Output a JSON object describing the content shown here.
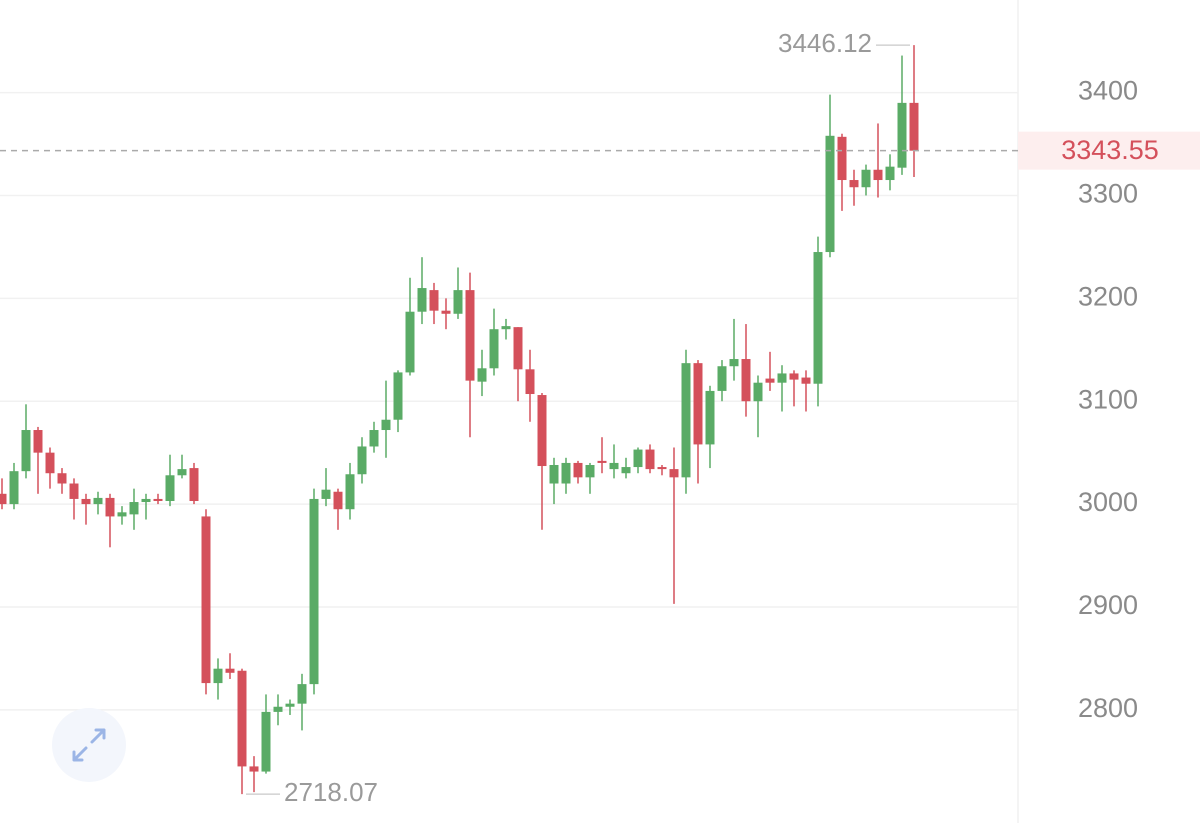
{
  "chart_data": {
    "type": "candlestick",
    "open": [
      3010,
      3000,
      3032,
      3072,
      3050,
      3030,
      3020,
      3005,
      3000,
      3006,
      2988,
      2990,
      3002,
      3005,
      3003,
      3028,
      3035,
      2988,
      2826,
      2840,
      2838,
      2745,
      2740,
      2798,
      2803,
      2806,
      2825,
      3005,
      3012,
      2995,
      3029,
      3056,
      3072,
      3082,
      3128,
      3187,
      3208,
      3188,
      3185,
      3208,
      3119,
      3132,
      3170,
      3172,
      3131,
      3106,
      3020,
      3020,
      3040,
      3026,
      3042,
      3034,
      3030,
      3036,
      3053,
      3036,
      3034,
      3026,
      3137,
      3058,
      3110,
      3134,
      3141,
      3100,
      3122,
      3118,
      3127,
      3123,
      3117,
      3245,
      3357,
      3315,
      3308,
      3325,
      3315,
      3327,
      3390
    ],
    "high": [
      3025,
      3040,
      3097,
      3075,
      3055,
      3035,
      3025,
      3010,
      3012,
      3010,
      2998,
      3015,
      3010,
      3010,
      3048,
      3048,
      3040,
      2995,
      2850,
      2855,
      2840,
      2755,
      2815,
      2815,
      2810,
      2835,
      3015,
      3035,
      3015,
      3040,
      3065,
      3080,
      3120,
      3130,
      3220,
      3240,
      3215,
      3200,
      3230,
      3225,
      3150,
      3190,
      3180,
      3172,
      3150,
      3108,
      3045,
      3045,
      3042,
      3040,
      3065,
      3058,
      3045,
      3055,
      3058,
      3038,
      3055,
      3150,
      3140,
      3115,
      3140,
      3180,
      3175,
      3125,
      3148,
      3135,
      3130,
      3130,
      3260,
      3398,
      3360,
      3325,
      3330,
      3370,
      3340,
      3436,
      3446.12
    ],
    "low": [
      2995,
      2995,
      3025,
      3010,
      3015,
      3010,
      2985,
      2980,
      2990,
      2958,
      2980,
      2975,
      2985,
      3000,
      2998,
      3025,
      3000,
      2815,
      2810,
      2830,
      2718.07,
      2720,
      2738,
      2785,
      2795,
      2780,
      2815,
      2998,
      2975,
      2985,
      3020,
      3050,
      3045,
      3070,
      3125,
      3175,
      3175,
      3170,
      3180,
      3065,
      3105,
      3125,
      3160,
      3100,
      3080,
      2975,
      3000,
      3010,
      3020,
      3010,
      3030,
      3025,
      3025,
      3030,
      3030,
      3028,
      2903,
      3010,
      3020,
      3035,
      3100,
      3120,
      3085,
      3065,
      3110,
      3090,
      3095,
      3090,
      3095,
      3240,
      3285,
      3290,
      3300,
      3298,
      3305,
      3320,
      3318
    ],
    "close": [
      3000,
      3032,
      3072,
      3050,
      3030,
      3020,
      3005,
      3000,
      3006,
      2988,
      2992,
      3002,
      3005,
      3003,
      3028,
      3034,
      3003,
      2826,
      2840,
      2836,
      2745,
      2740,
      2798,
      2803,
      2806,
      2825,
      3005,
      3014,
      2995,
      3029,
      3056,
      3072,
      3082,
      3128,
      3187,
      3210,
      3188,
      3185,
      3208,
      3120,
      3132,
      3170,
      3173,
      3131,
      3107,
      3037,
      3038,
      3040,
      3026,
      3038,
      3040,
      3040,
      3036,
      3053,
      3034,
      3034,
      3026,
      3137,
      3058,
      3110,
      3134,
      3141,
      3100,
      3118,
      3118,
      3127,
      3121,
      3117,
      3245,
      3358,
      3315,
      3308,
      3325,
      3315,
      3328,
      3390,
      3343.55
    ],
    "up_color": "#5aab66",
    "down_color": "#d4505b",
    "ylim": [
      2690,
      3490
    ],
    "yticks": [
      2800,
      2900,
      3000,
      3100,
      3200,
      3300,
      3400
    ],
    "grid": true
  }
}
